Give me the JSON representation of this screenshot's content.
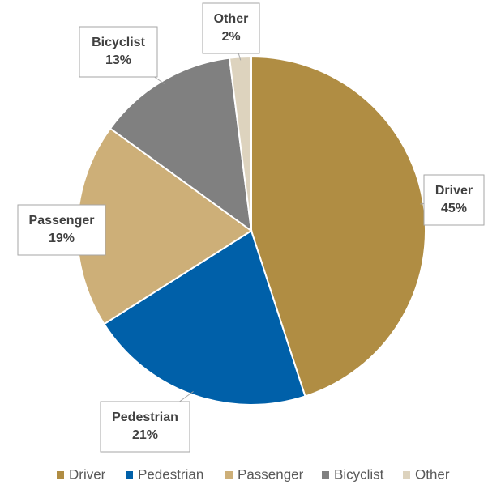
{
  "chart_data": {
    "type": "pie",
    "categories": [
      "Driver",
      "Pedestrian",
      "Passenger",
      "Bicyclist",
      "Other"
    ],
    "values": [
      45,
      21,
      19,
      13,
      2
    ],
    "value_labels": [
      "45%",
      "21%",
      "19%",
      "13%",
      "2%"
    ],
    "colors": [
      "#b08d43",
      "#0060a9",
      "#cdaf78",
      "#808080",
      "#ddd3be"
    ],
    "legend": "bottom"
  }
}
